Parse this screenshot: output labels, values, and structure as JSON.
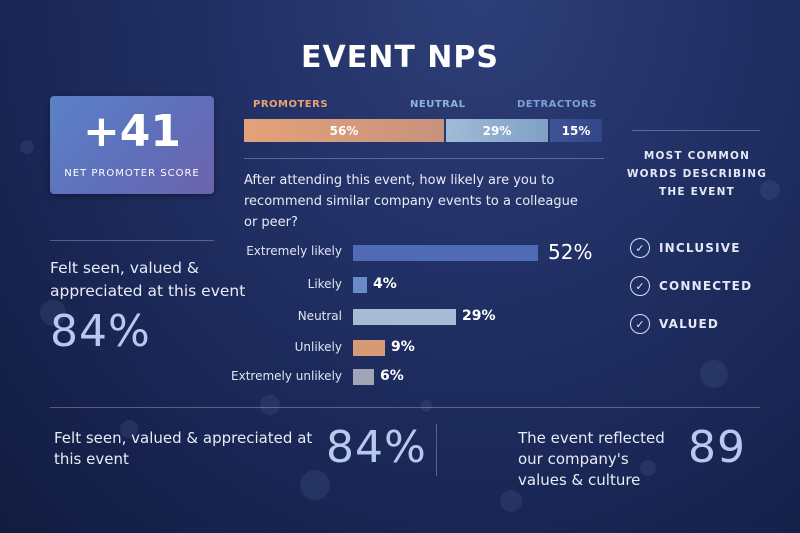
{
  "title": "EVENT NPS",
  "score": {
    "value": "+41",
    "label": "NET PROMOTER SCORE"
  },
  "segments": [
    {
      "label": "PROMOTERS",
      "value": "56%",
      "percent": 56,
      "label_color": "#e8a474",
      "bar_color": "#dc9d75"
    },
    {
      "label": "NEUTRAL",
      "value": "29%",
      "percent": 29,
      "label_color": "#8fb4d8",
      "bar_color": "#8fb0cd"
    },
    {
      "label": "DETRACTORS",
      "value": "15%",
      "percent": 15,
      "label_color": "#7fa0d8",
      "bar_color": "#3d4e8f"
    }
  ],
  "question": "After attending this event, how likely are you to recommend similar company events to a colleague or peer?",
  "responses": [
    {
      "label": "Extremely likely",
      "value": "52%",
      "percent": 52,
      "color": "#4f6bb5"
    },
    {
      "label": "Likely",
      "value": "4%",
      "percent": 4,
      "color": "#6b8ac8"
    },
    {
      "label": "Neutral",
      "value": "29%",
      "percent": 29,
      "color": "#a7bad6"
    },
    {
      "label": "Unlikely",
      "value": "9%",
      "percent": 9,
      "color": "#d89a74"
    },
    {
      "label": "Extremely unlikely",
      "value": "6%",
      "percent": 6,
      "color": "#a0a5b8"
    }
  ],
  "side_stat": {
    "text": "Felt seen, valued & appreciated at this event",
    "value": "84%"
  },
  "words": {
    "title": "MOST COMMON WORDS DESCRIBING THE EVENT",
    "items": [
      "INCLUSIVE",
      "CONNECTED",
      "VALUED"
    ]
  },
  "bottom": [
    {
      "text": "Felt seen, valued & appreciated at this event",
      "value": "84%"
    },
    {
      "text": "The event reflected our company's values & culture",
      "value": "89"
    }
  ]
}
